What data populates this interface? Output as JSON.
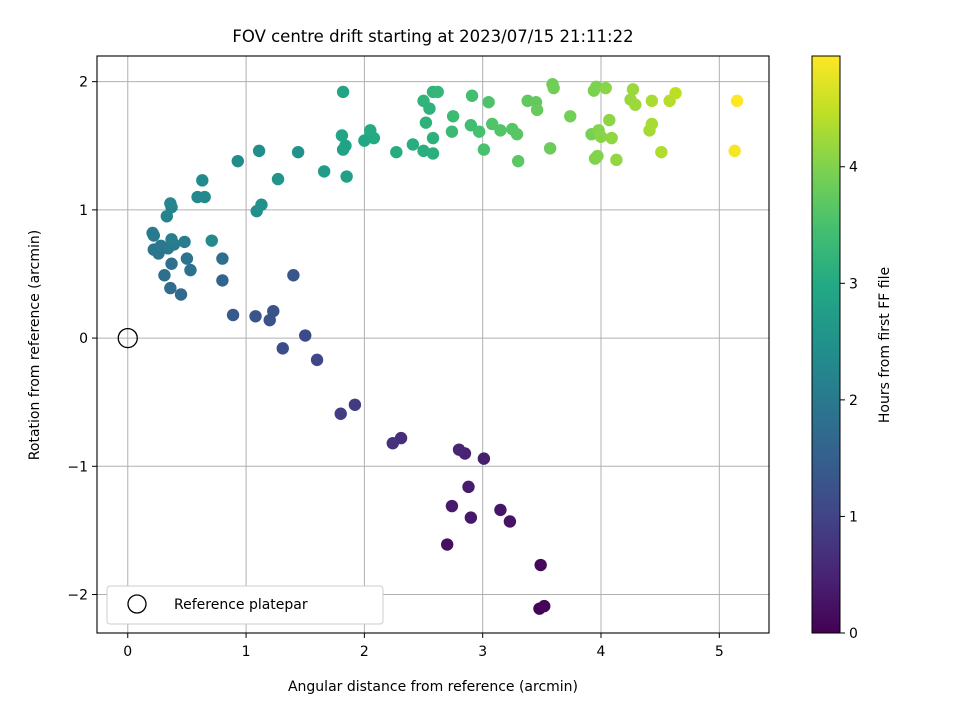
{
  "chart_data": {
    "type": "scatter",
    "title": "FOV centre drift starting at 2023/07/15 21:11:22",
    "xlabel": "Angular distance from reference (arcmin)",
    "ylabel": "Rotation from reference (arcmin)",
    "xlim": [
      -0.26,
      5.42
    ],
    "ylim": [
      -2.3,
      2.2
    ],
    "x_ticks": [
      0,
      1,
      2,
      3,
      4,
      5
    ],
    "x_tick_labels": [
      "0",
      "1",
      "2",
      "3",
      "4",
      "5"
    ],
    "y_ticks": [
      -2,
      -1,
      0,
      1,
      2
    ],
    "y_tick_labels": [
      "−2",
      "−1",
      "0",
      "1",
      "2"
    ],
    "grid": true,
    "legend": {
      "position": "bottom-left",
      "entries": [
        "Reference platepar"
      ]
    },
    "reference_point": {
      "label": "Reference platepar",
      "x": 0,
      "y": 0,
      "marker": "open-circle"
    },
    "colorbar": {
      "label": "Hours from first FF file",
      "colormap": "viridis",
      "range": [
        0,
        4.95
      ],
      "ticks": [
        0,
        1,
        2,
        3,
        4
      ],
      "tick_labels": [
        "0",
        "1",
        "2",
        "3",
        "4"
      ]
    },
    "series": [
      {
        "points": [
          {
            "x": 3.48,
            "y": -2.11,
            "c": 0.05
          },
          {
            "x": 3.52,
            "y": -2.09,
            "c": 0.07
          },
          {
            "x": 3.49,
            "y": -1.77,
            "c": 0.12
          },
          {
            "x": 2.7,
            "y": -1.61,
            "c": 0.2
          },
          {
            "x": 3.23,
            "y": -1.43,
            "c": 0.25
          },
          {
            "x": 3.15,
            "y": -1.34,
            "c": 0.28
          },
          {
            "x": 2.9,
            "y": -1.4,
            "c": 0.33
          },
          {
            "x": 2.74,
            "y": -1.31,
            "c": 0.36
          },
          {
            "x": 2.88,
            "y": -1.16,
            "c": 0.38
          },
          {
            "x": 3.01,
            "y": -0.94,
            "c": 0.42
          },
          {
            "x": 2.85,
            "y": -0.9,
            "c": 0.48
          },
          {
            "x": 2.8,
            "y": -0.87,
            "c": 0.52
          },
          {
            "x": 2.31,
            "y": -0.78,
            "c": 0.65
          },
          {
            "x": 2.24,
            "y": -0.82,
            "c": 0.7
          },
          {
            "x": 1.92,
            "y": -0.52,
            "c": 0.85
          },
          {
            "x": 1.8,
            "y": -0.59,
            "c": 0.88
          },
          {
            "x": 1.6,
            "y": -0.17,
            "c": 1.05
          },
          {
            "x": 1.5,
            "y": 0.02,
            "c": 1.1
          },
          {
            "x": 1.31,
            "y": -0.08,
            "c": 1.15
          },
          {
            "x": 1.2,
            "y": 0.14,
            "c": 1.25
          },
          {
            "x": 1.23,
            "y": 0.21,
            "c": 1.27
          },
          {
            "x": 1.08,
            "y": 0.17,
            "c": 1.3
          },
          {
            "x": 0.89,
            "y": 0.18,
            "c": 1.4
          },
          {
            "x": 1.4,
            "y": 0.49,
            "c": 1.32
          },
          {
            "x": 0.8,
            "y": 0.45,
            "c": 1.6
          },
          {
            "x": 0.45,
            "y": 0.34,
            "c": 1.7
          },
          {
            "x": 0.36,
            "y": 0.39,
            "c": 1.75
          },
          {
            "x": 0.31,
            "y": 0.49,
            "c": 1.8
          },
          {
            "x": 0.53,
            "y": 0.53,
            "c": 1.85
          },
          {
            "x": 0.37,
            "y": 0.58,
            "c": 1.82
          },
          {
            "x": 0.5,
            "y": 0.62,
            "c": 1.88
          },
          {
            "x": 0.8,
            "y": 0.62,
            "c": 1.78
          },
          {
            "x": 0.26,
            "y": 0.66,
            "c": 1.95
          },
          {
            "x": 0.22,
            "y": 0.69,
            "c": 1.92
          },
          {
            "x": 0.28,
            "y": 0.72,
            "c": 1.98
          },
          {
            "x": 0.34,
            "y": 0.7,
            "c": 2.0
          },
          {
            "x": 0.39,
            "y": 0.73,
            "c": 2.02
          },
          {
            "x": 0.48,
            "y": 0.75,
            "c": 2.05
          },
          {
            "x": 0.37,
            "y": 0.77,
            "c": 2.08
          },
          {
            "x": 0.71,
            "y": 0.76,
            "c": 2.35
          },
          {
            "x": 0.22,
            "y": 0.8,
            "c": 2.0
          },
          {
            "x": 0.21,
            "y": 0.82,
            "c": 2.02
          },
          {
            "x": 0.33,
            "y": 0.95,
            "c": 2.2
          },
          {
            "x": 0.37,
            "y": 1.02,
            "c": 2.22
          },
          {
            "x": 0.36,
            "y": 1.05,
            "c": 2.25
          },
          {
            "x": 0.59,
            "y": 1.1,
            "c": 2.3
          },
          {
            "x": 0.65,
            "y": 1.1,
            "c": 2.32
          },
          {
            "x": 0.63,
            "y": 1.23,
            "c": 2.35
          },
          {
            "x": 1.09,
            "y": 0.99,
            "c": 2.45
          },
          {
            "x": 1.13,
            "y": 1.04,
            "c": 2.48
          },
          {
            "x": 0.93,
            "y": 1.38,
            "c": 2.4
          },
          {
            "x": 1.11,
            "y": 1.46,
            "c": 2.42
          },
          {
            "x": 1.27,
            "y": 1.24,
            "c": 2.55
          },
          {
            "x": 1.44,
            "y": 1.45,
            "c": 2.5
          },
          {
            "x": 1.66,
            "y": 1.3,
            "c": 2.72
          },
          {
            "x": 1.85,
            "y": 1.26,
            "c": 2.8
          },
          {
            "x": 1.82,
            "y": 1.47,
            "c": 2.82
          },
          {
            "x": 1.84,
            "y": 1.5,
            "c": 2.85
          },
          {
            "x": 1.81,
            "y": 1.58,
            "c": 2.88
          },
          {
            "x": 1.82,
            "y": 1.92,
            "c": 2.9
          },
          {
            "x": 2.0,
            "y": 1.54,
            "c": 2.95
          },
          {
            "x": 2.05,
            "y": 1.58,
            "c": 2.98
          },
          {
            "x": 2.08,
            "y": 1.56,
            "c": 3.0
          },
          {
            "x": 2.05,
            "y": 1.62,
            "c": 3.02
          },
          {
            "x": 2.27,
            "y": 1.45,
            "c": 3.05
          },
          {
            "x": 2.41,
            "y": 1.51,
            "c": 3.08
          },
          {
            "x": 2.5,
            "y": 1.46,
            "c": 3.1
          },
          {
            "x": 2.58,
            "y": 1.44,
            "c": 3.12
          },
          {
            "x": 2.58,
            "y": 1.56,
            "c": 3.14
          },
          {
            "x": 2.52,
            "y": 1.68,
            "c": 3.16
          },
          {
            "x": 2.55,
            "y": 1.79,
            "c": 3.18
          },
          {
            "x": 2.5,
            "y": 1.85,
            "c": 3.2
          },
          {
            "x": 2.58,
            "y": 1.92,
            "c": 3.22
          },
          {
            "x": 2.62,
            "y": 1.92,
            "c": 3.25
          },
          {
            "x": 2.74,
            "y": 1.61,
            "c": 3.35
          },
          {
            "x": 2.75,
            "y": 1.73,
            "c": 3.38
          },
          {
            "x": 2.9,
            "y": 1.66,
            "c": 3.4
          },
          {
            "x": 2.91,
            "y": 1.89,
            "c": 3.45
          },
          {
            "x": 2.97,
            "y": 1.61,
            "c": 3.48
          },
          {
            "x": 3.01,
            "y": 1.47,
            "c": 3.5
          },
          {
            "x": 3.05,
            "y": 1.84,
            "c": 3.55
          },
          {
            "x": 3.08,
            "y": 1.67,
            "c": 3.58
          },
          {
            "x": 3.15,
            "y": 1.62,
            "c": 3.6
          },
          {
            "x": 3.25,
            "y": 1.63,
            "c": 3.62
          },
          {
            "x": 3.29,
            "y": 1.59,
            "c": 3.65
          },
          {
            "x": 3.3,
            "y": 1.38,
            "c": 3.68
          },
          {
            "x": 3.38,
            "y": 1.85,
            "c": 3.72
          },
          {
            "x": 3.45,
            "y": 1.84,
            "c": 3.75
          },
          {
            "x": 3.46,
            "y": 1.78,
            "c": 3.78
          },
          {
            "x": 3.57,
            "y": 1.48,
            "c": 3.82
          },
          {
            "x": 3.59,
            "y": 1.98,
            "c": 3.85
          },
          {
            "x": 3.6,
            "y": 1.95,
            "c": 3.88
          },
          {
            "x": 3.74,
            "y": 1.73,
            "c": 3.9
          },
          {
            "x": 3.92,
            "y": 1.59,
            "c": 3.92
          },
          {
            "x": 3.94,
            "y": 1.93,
            "c": 3.95
          },
          {
            "x": 3.96,
            "y": 1.96,
            "c": 3.97
          },
          {
            "x": 3.95,
            "y": 1.4,
            "c": 4.0
          },
          {
            "x": 3.97,
            "y": 1.42,
            "c": 4.02
          },
          {
            "x": 3.98,
            "y": 1.62,
            "c": 4.04
          },
          {
            "x": 4.0,
            "y": 1.57,
            "c": 4.06
          },
          {
            "x": 4.04,
            "y": 1.95,
            "c": 4.08
          },
          {
            "x": 4.07,
            "y": 1.7,
            "c": 4.1
          },
          {
            "x": 4.09,
            "y": 1.56,
            "c": 4.12
          },
          {
            "x": 4.13,
            "y": 1.39,
            "c": 4.14
          },
          {
            "x": 4.25,
            "y": 1.86,
            "c": 4.18
          },
          {
            "x": 4.27,
            "y": 1.94,
            "c": 4.2
          },
          {
            "x": 4.29,
            "y": 1.82,
            "c": 4.22
          },
          {
            "x": 4.41,
            "y": 1.62,
            "c": 4.28
          },
          {
            "x": 4.43,
            "y": 1.67,
            "c": 4.3
          },
          {
            "x": 4.43,
            "y": 1.85,
            "c": 4.32
          },
          {
            "x": 4.51,
            "y": 1.45,
            "c": 4.36
          },
          {
            "x": 4.58,
            "y": 1.85,
            "c": 4.4
          },
          {
            "x": 4.63,
            "y": 1.91,
            "c": 4.45
          },
          {
            "x": 5.13,
            "y": 1.46,
            "c": 4.9
          },
          {
            "x": 5.15,
            "y": 1.85,
            "c": 4.95
          }
        ]
      }
    ]
  }
}
